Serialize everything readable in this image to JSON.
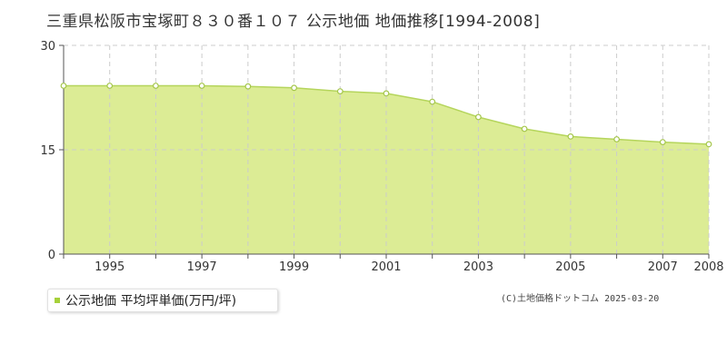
{
  "title": "三重県松阪市宝塚町８３０番１０７ 公示地価 地価推移[1994-2008]",
  "legend": {
    "label": "公示地価 平均坪単価(万円/坪)"
  },
  "credit": "(C)土地価格ドットコム 2025-03-20",
  "colors": {
    "fill": "#dcec95",
    "line": "#b5d55c",
    "marker_fill": "#ffffff",
    "marker_stroke": "#a4c64a",
    "grid": "#cccccc",
    "axis": "#555555",
    "legend_swatch": "#a6d13a"
  },
  "chart_data": {
    "type": "area",
    "title": "",
    "xlabel": "",
    "ylabel": "",
    "x": [
      1994,
      1995,
      1996,
      1997,
      1998,
      1999,
      2000,
      2001,
      2002,
      2003,
      2004,
      2005,
      2006,
      2007,
      2008
    ],
    "series": [
      {
        "name": "公示地価 平均坪単価(万円/坪)",
        "values": [
          24.2,
          24.2,
          24.2,
          24.2,
          24.1,
          23.9,
          23.4,
          23.1,
          21.9,
          19.7,
          18.0,
          16.9,
          16.5,
          16.1,
          15.8
        ]
      }
    ],
    "xlim": [
      1994,
      2008
    ],
    "ylim": [
      0,
      30
    ],
    "y_ticks": [
      0,
      15,
      30
    ],
    "x_tick_labels": [
      "1995",
      "1997",
      "1999",
      "2001",
      "2003",
      "2005",
      "2007",
      "2008"
    ],
    "grid": true,
    "legend_position": "bottom-left"
  }
}
